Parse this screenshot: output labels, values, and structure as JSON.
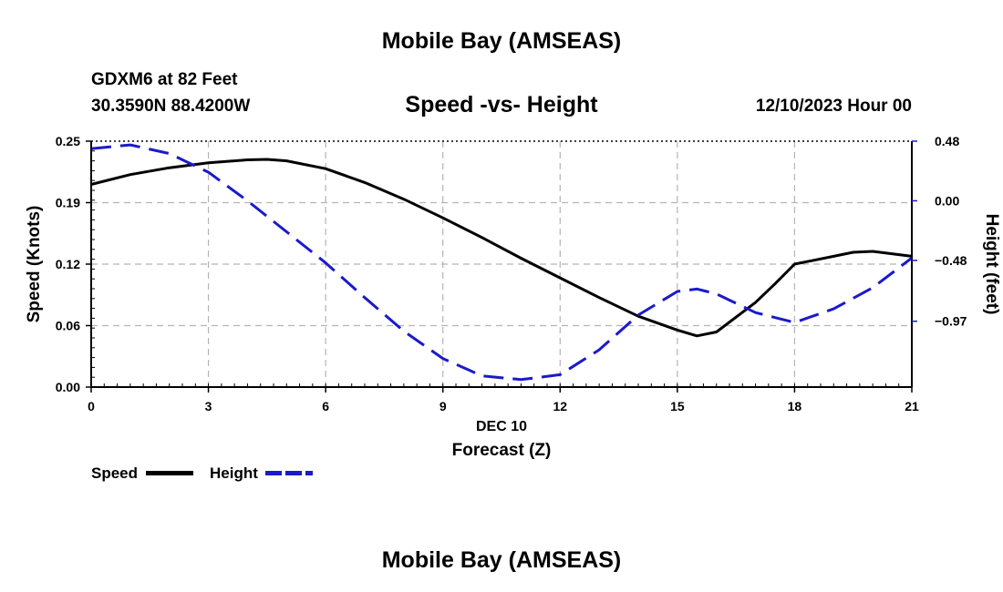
{
  "header": {
    "title": "Mobile Bay (AMSEAS)",
    "station": "GDXM6 at 82 Feet",
    "coords": "30.3590N  88.4200W",
    "subtitle": "Speed -vs- Height",
    "date": "12/10/2023 Hour 00"
  },
  "footer": {
    "title": "Mobile Bay (AMSEAS)"
  },
  "legend": {
    "speed_label": "Speed",
    "height_label": "Height"
  },
  "colors": {
    "speed": "#000000",
    "height": "#1a1acc",
    "grid": "#b4b4b4"
  },
  "chart_data": {
    "type": "line",
    "title": "Speed -vs- Height",
    "xlabel": "Forecast (Z)",
    "xlabel_date": "DEC 10",
    "ylabel": "Speed (Knots)",
    "y2label": "Height (feet)",
    "xlim": [
      0,
      21
    ],
    "ylim": [
      0,
      0.25
    ],
    "y2lim": [
      -1.5,
      0.48
    ],
    "x_ticks": [
      0,
      3,
      6,
      9,
      12,
      15,
      18,
      21
    ],
    "x_tick_labels": [
      "0",
      "3",
      "6",
      "9",
      "12",
      "15",
      "18",
      "21"
    ],
    "y_ticks": [
      0,
      0.0625,
      0.125,
      0.1875,
      0.25
    ],
    "y_tick_labels": [
      "0.00",
      "0.06",
      "0.12",
      "0.19",
      "0.25"
    ],
    "y2_ticks": [
      0.48,
      0.0,
      -0.48,
      -0.97
    ],
    "y2_tick_labels": [
      "0.48",
      "0.00",
      "−0.48",
      "−0.97"
    ],
    "grid": true,
    "series": [
      {
        "name": "Speed",
        "axis": "left",
        "style": "solid",
        "x": [
          0,
          1,
          2,
          3,
          4,
          4.5,
          5,
          6,
          7,
          8,
          9,
          10,
          11,
          12,
          13,
          14,
          15,
          15.5,
          16,
          17,
          17.5,
          18,
          19,
          19.5,
          20,
          21
        ],
        "values": [
          0.206,
          0.216,
          0.223,
          0.228,
          0.231,
          0.2315,
          0.23,
          0.222,
          0.208,
          0.191,
          0.172,
          0.152,
          0.131,
          0.111,
          0.091,
          0.072,
          0.058,
          0.052,
          0.056,
          0.086,
          0.105,
          0.125,
          0.133,
          0.137,
          0.138,
          0.133
        ]
      },
      {
        "name": "Height",
        "axis": "right",
        "style": "dashed",
        "x": [
          0,
          1,
          2,
          3,
          4,
          5,
          6,
          7,
          8,
          9,
          10,
          11,
          12,
          13,
          14,
          15,
          15.5,
          16,
          17,
          18,
          19,
          20,
          21
        ],
        "values": [
          0.42,
          0.45,
          0.38,
          0.23,
          0.0,
          -0.25,
          -0.5,
          -0.78,
          -1.05,
          -1.27,
          -1.41,
          -1.44,
          -1.4,
          -1.2,
          -0.92,
          -0.73,
          -0.71,
          -0.75,
          -0.9,
          -0.98,
          -0.87,
          -0.7,
          -0.46
        ]
      }
    ]
  }
}
